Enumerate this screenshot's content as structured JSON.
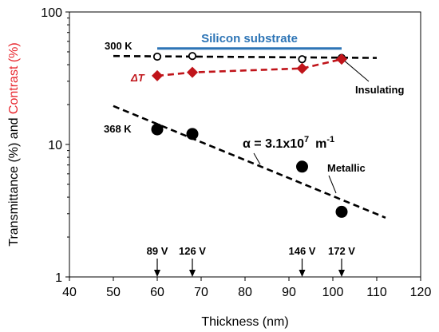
{
  "chart_data": {
    "type": "scatter",
    "xlabel": "Thickness (nm)",
    "ylabel_parts": [
      {
        "text": "Transmittance (%) and ",
        "color": "#000000"
      },
      {
        "text": "Contrast (%)",
        "color": "#e8282f"
      }
    ],
    "xlim": [
      40,
      120
    ],
    "ylim": [
      1,
      100
    ],
    "y_scale": "log",
    "x_ticks": [
      "40",
      "50",
      "60",
      "70",
      "80",
      "90",
      "100",
      "110",
      "120"
    ],
    "y_ticks": [
      {
        "value": 1,
        "label": "1"
      },
      {
        "value": 10,
        "label": "10"
      },
      {
        "value": 100,
        "label": "100"
      }
    ],
    "grid": false,
    "series": [
      {
        "name": "300 K",
        "marker": "open-circle",
        "color": "#000000",
        "points": [
          [
            60,
            46
          ],
          [
            68,
            46.5
          ],
          [
            93,
            44
          ],
          [
            102,
            45
          ]
        ]
      },
      {
        "name": "ΔT",
        "marker": "diamond",
        "color": "#c0141a",
        "points": [
          [
            60,
            33
          ],
          [
            68,
            35
          ],
          [
            93,
            37.5
          ],
          [
            102,
            44
          ]
        ]
      },
      {
        "name": "368 K",
        "marker": "filled-circle",
        "color": "#000000",
        "points": [
          [
            60,
            13
          ],
          [
            68,
            12
          ],
          [
            93,
            6.8
          ],
          [
            102,
            3.1
          ]
        ]
      }
    ],
    "lines": [
      {
        "name": "300 K fit",
        "style": "dashed",
        "color": "#000000",
        "points": [
          [
            50,
            46.5
          ],
          [
            110,
            45
          ]
        ]
      },
      {
        "name": "ΔT fit",
        "style": "dashed",
        "color": "#c0141a",
        "points": [
          [
            60,
            33
          ],
          [
            68,
            35
          ],
          [
            93,
            37.5
          ],
          [
            102,
            44
          ]
        ]
      },
      {
        "name": "368 K fit",
        "style": "dashed",
        "color": "#000000",
        "points": [
          [
            50,
            19.5
          ],
          [
            112,
            2.8
          ]
        ]
      },
      {
        "name": "Silicon substrate",
        "style": "solid",
        "color": "#2e75b6",
        "points": [
          [
            60,
            53
          ],
          [
            102,
            53
          ]
        ]
      }
    ],
    "annotations": {
      "silicon_substrate": "Silicon substrate",
      "label_300k": "300 K",
      "label_delta_t": "ΔT",
      "label_insulating": "Insulating",
      "label_368k": "368 K",
      "label_metallic": "Metallic",
      "alpha_prefix": "α = 3.1x10",
      "alpha_exp": "7",
      "alpha_unit": "m",
      "alpha_unit_exp": "-1"
    },
    "voltage_markers": [
      {
        "x": 60,
        "label": "89 V"
      },
      {
        "x": 68,
        "label": "126 V"
      },
      {
        "x": 93,
        "label": "146 V"
      },
      {
        "x": 102,
        "label": "172 V"
      }
    ]
  }
}
